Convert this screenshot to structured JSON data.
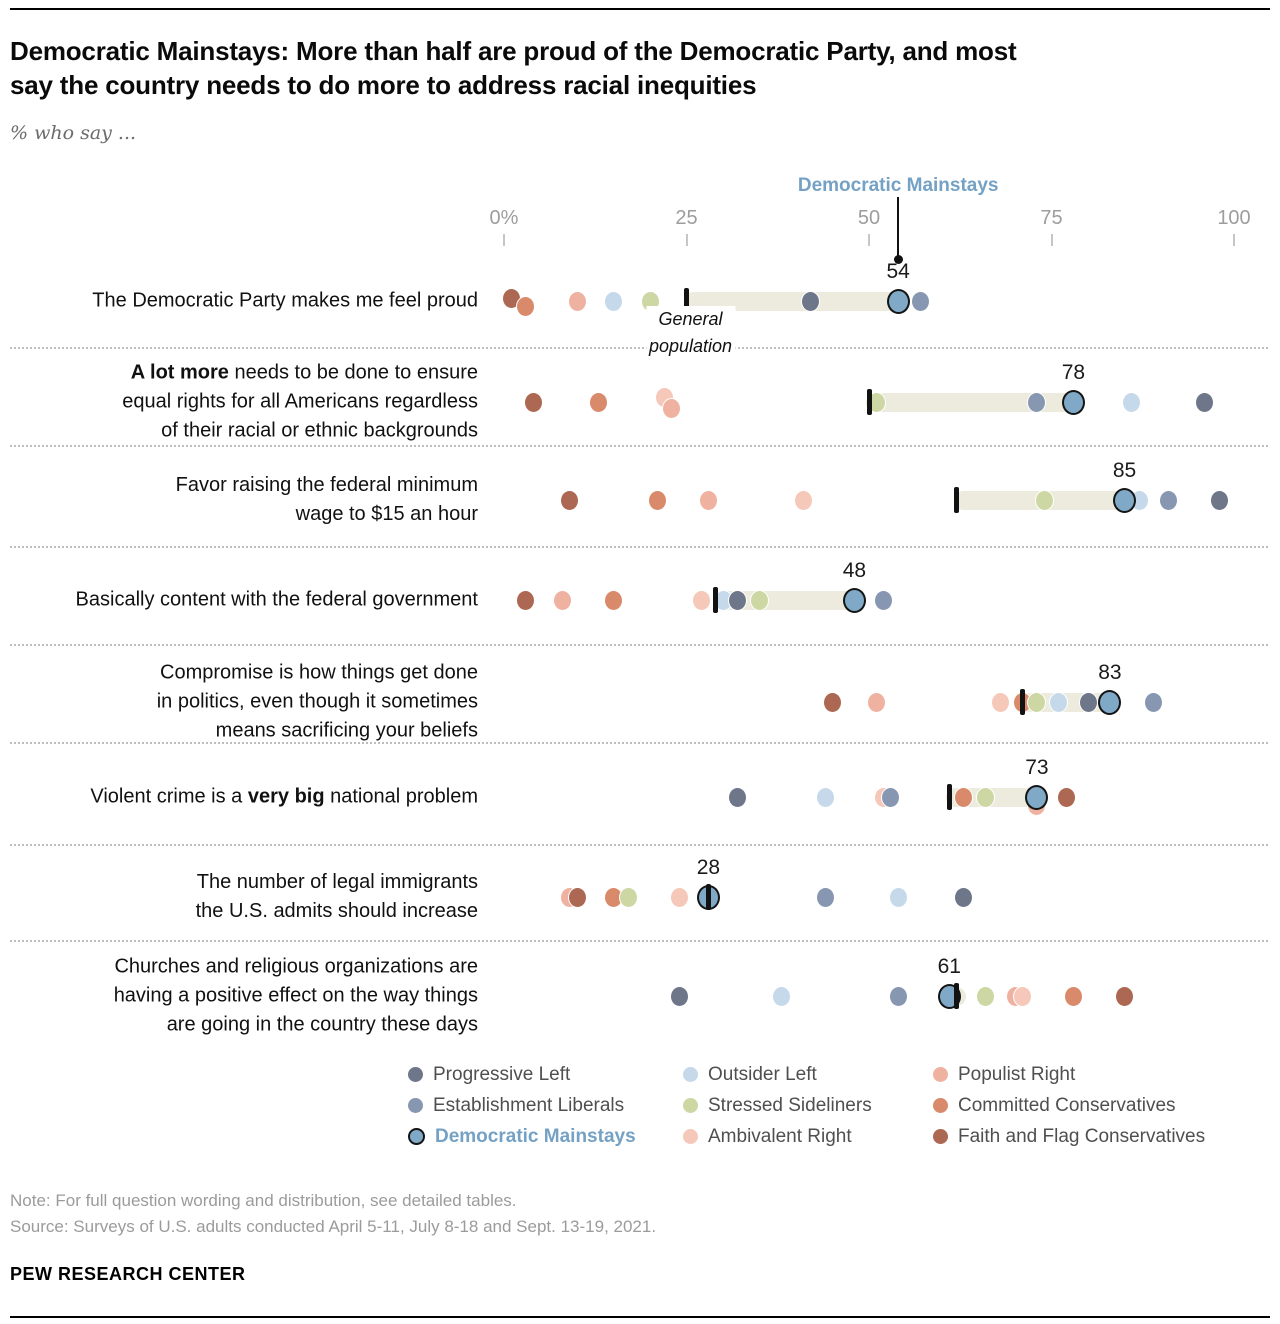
{
  "header": {
    "title_line1": "Democratic Mainstays: More than half are proud of the Democratic Party, and most",
    "title_line2": "say the country needs to do more to address racial inequities",
    "subtitle": "% who say ..."
  },
  "pointer": {
    "label": "Democratic Mainstays",
    "value": 54,
    "color": "#74a1c4"
  },
  "general_population_annotation": {
    "line1": "General",
    "line2": "population",
    "anchor_value": 25
  },
  "groups": [
    {
      "id": "progressive_left",
      "label": "Progressive Left",
      "color": "#6e7689"
    },
    {
      "id": "establishment_liberals",
      "label": "Establishment Liberals",
      "color": "#8897b1"
    },
    {
      "id": "democratic_mainstays",
      "label": "Democratic Mainstays",
      "color": "#7fa9c7",
      "ring": true,
      "label_color": "#74a1c4"
    },
    {
      "id": "outsider_left",
      "label": "Outsider Left",
      "color": "#c6d9eb"
    },
    {
      "id": "stressed_sideliners",
      "label": "Stressed Sideliners",
      "color": "#cdd7a3"
    },
    {
      "id": "ambivalent_right",
      "label": "Ambivalent Right",
      "color": "#f6c8ba"
    },
    {
      "id": "populist_right",
      "label": "Populist Right",
      "color": "#efb2a1"
    },
    {
      "id": "committed_conservatives",
      "label": "Committed Conservatives",
      "color": "#d98a6b"
    },
    {
      "id": "faith_flag",
      "label": "Faith and Flag Conservatives",
      "color": "#ac6852"
    }
  ],
  "legend_columns": [
    [
      "progressive_left",
      "establishment_liberals",
      "democratic_mainstays"
    ],
    [
      "outsider_left",
      "stressed_sideliners",
      "ambivalent_right"
    ],
    [
      "populist_right",
      "committed_conservatives",
      "faith_flag"
    ]
  ],
  "chart_data": {
    "type": "scatter",
    "title": "Democratic Mainstays: More than half are proud of the Democratic Party, and most say the country needs to do more to address racial inequities",
    "xlabel": "% who say",
    "xlim": [
      0,
      100
    ],
    "grid": false,
    "axis_ticks": [
      {
        "value": 0,
        "label": "0%"
      },
      {
        "value": 25,
        "label": "25"
      },
      {
        "value": 50,
        "label": "50"
      },
      {
        "value": 75,
        "label": "75"
      },
      {
        "value": 100,
        "label": "100"
      }
    ],
    "bar_color": "#ecebdd",
    "rows": [
      {
        "label": [
          [
            {
              "t": "The Democratic Party makes me feel proud",
              "b": false
            }
          ]
        ],
        "general_population": 25,
        "dm_value": 54,
        "dm_label": "54",
        "dots": [
          {
            "g": "faith_flag",
            "v": 1,
            "dy": -3
          },
          {
            "g": "committed_conservatives",
            "v": 3,
            "dy": 5
          },
          {
            "g": "populist_right",
            "v": 10,
            "dy": 0
          },
          {
            "g": "outsider_left",
            "v": 15,
            "dy": 0
          },
          {
            "g": "stressed_sideliners",
            "v": 20,
            "dy": 0
          },
          {
            "g": "progressive_left",
            "v": 42,
            "dy": 0
          },
          {
            "g": "establishment_liberals",
            "v": 57,
            "dy": 0
          },
          {
            "g": "democratic_mainstays",
            "v": 54,
            "dy": 0
          }
        ]
      },
      {
        "label": [
          [
            {
              "t": "A lot more",
              "b": true
            },
            {
              "t": " needs to be done to ensure",
              "b": false
            }
          ],
          [
            {
              "t": "equal rights for all Americans regardless",
              "b": false
            }
          ],
          [
            {
              "t": "of their racial or ethnic backgrounds",
              "b": false
            }
          ]
        ],
        "general_population": 50,
        "dm_value": 78,
        "dm_label": "78",
        "dots": [
          {
            "g": "faith_flag",
            "v": 4,
            "dy": 0
          },
          {
            "g": "committed_conservatives",
            "v": 13,
            "dy": 0
          },
          {
            "g": "ambivalent_right",
            "v": 22,
            "dy": -5
          },
          {
            "g": "populist_right",
            "v": 23,
            "dy": 6
          },
          {
            "g": "stressed_sideliners",
            "v": 51,
            "dy": 0
          },
          {
            "g": "establishment_liberals",
            "v": 73,
            "dy": 0
          },
          {
            "g": "outsider_left",
            "v": 86,
            "dy": 0
          },
          {
            "g": "progressive_left",
            "v": 96,
            "dy": 0
          },
          {
            "g": "democratic_mainstays",
            "v": 78,
            "dy": 0
          }
        ]
      },
      {
        "label": [
          [
            {
              "t": "Favor raising the federal minimum",
              "b": false
            }
          ],
          [
            {
              "t": "wage to $15 an hour",
              "b": false
            }
          ]
        ],
        "general_population": 62,
        "dm_value": 85,
        "dm_label": "85",
        "dots": [
          {
            "g": "faith_flag",
            "v": 9,
            "dy": 0
          },
          {
            "g": "committed_conservatives",
            "v": 21,
            "dy": 0
          },
          {
            "g": "populist_right",
            "v": 28,
            "dy": 0
          },
          {
            "g": "ambivalent_right",
            "v": 41,
            "dy": 0
          },
          {
            "g": "stressed_sideliners",
            "v": 74,
            "dy": 0
          },
          {
            "g": "outsider_left",
            "v": 87,
            "dy": 0
          },
          {
            "g": "establishment_liberals",
            "v": 91,
            "dy": 0
          },
          {
            "g": "progressive_left",
            "v": 98,
            "dy": 0
          },
          {
            "g": "democratic_mainstays",
            "v": 85,
            "dy": 0
          }
        ]
      },
      {
        "label": [
          [
            {
              "t": "Basically content with the federal government",
              "b": false
            }
          ]
        ],
        "general_population": 29,
        "dm_value": 48,
        "dm_label": "48",
        "dots": [
          {
            "g": "faith_flag",
            "v": 3,
            "dy": 0
          },
          {
            "g": "populist_right",
            "v": 8,
            "dy": 0
          },
          {
            "g": "committed_conservatives",
            "v": 15,
            "dy": 0
          },
          {
            "g": "ambivalent_right",
            "v": 27,
            "dy": 0
          },
          {
            "g": "outsider_left",
            "v": 30,
            "dy": 0
          },
          {
            "g": "progressive_left",
            "v": 32,
            "dy": 0
          },
          {
            "g": "stressed_sideliners",
            "v": 35,
            "dy": 0
          },
          {
            "g": "establishment_liberals",
            "v": 52,
            "dy": 0
          },
          {
            "g": "democratic_mainstays",
            "v": 48,
            "dy": 0
          }
        ]
      },
      {
        "label": [
          [
            {
              "t": "Compromise is how things get done",
              "b": false
            }
          ],
          [
            {
              "t": "in politics, even though it sometimes",
              "b": false
            }
          ],
          [
            {
              "t": "means sacrificing your beliefs",
              "b": false
            }
          ]
        ],
        "general_population": 71,
        "dm_value": 83,
        "dm_label": "83",
        "dots": [
          {
            "g": "faith_flag",
            "v": 45,
            "dy": 0
          },
          {
            "g": "populist_right",
            "v": 51,
            "dy": 0
          },
          {
            "g": "ambivalent_right",
            "v": 68,
            "dy": 0
          },
          {
            "g": "committed_conservatives",
            "v": 71,
            "dy": 0
          },
          {
            "g": "stressed_sideliners",
            "v": 73,
            "dy": 0
          },
          {
            "g": "outsider_left",
            "v": 76,
            "dy": 0
          },
          {
            "g": "progressive_left",
            "v": 80,
            "dy": 0
          },
          {
            "g": "establishment_liberals",
            "v": 89,
            "dy": 0
          },
          {
            "g": "democratic_mainstays",
            "v": 83,
            "dy": 0
          }
        ]
      },
      {
        "label": [
          [
            {
              "t": "Violent crime is a ",
              "b": false
            },
            {
              "t": "very big",
              "b": true
            },
            {
              "t": " national problem",
              "b": false
            }
          ]
        ],
        "general_population": 61,
        "dm_value": 73,
        "dm_label": "73",
        "dots": [
          {
            "g": "progressive_left",
            "v": 32,
            "dy": 0
          },
          {
            "g": "outsider_left",
            "v": 44,
            "dy": 0
          },
          {
            "g": "ambivalent_right",
            "v": 52,
            "dy": 0
          },
          {
            "g": "establishment_liberals",
            "v": 53,
            "dy": 0
          },
          {
            "g": "committed_conservatives",
            "v": 63,
            "dy": 0
          },
          {
            "g": "stressed_sideliners",
            "v": 66,
            "dy": 0
          },
          {
            "g": "populist_right",
            "v": 73,
            "dy": 8
          },
          {
            "g": "faith_flag",
            "v": 77,
            "dy": 0
          },
          {
            "g": "democratic_mainstays",
            "v": 73,
            "dy": 0
          }
        ]
      },
      {
        "label": [
          [
            {
              "t": "The number of legal immigrants",
              "b": false
            }
          ],
          [
            {
              "t": "the U.S. admits should increase",
              "b": false
            }
          ]
        ],
        "general_population": 28,
        "dm_value": 28,
        "dm_label": "28",
        "dots": [
          {
            "g": "populist_right",
            "v": 9,
            "dy": 0
          },
          {
            "g": "faith_flag",
            "v": 10,
            "dy": 0
          },
          {
            "g": "committed_conservatives",
            "v": 15,
            "dy": 0
          },
          {
            "g": "stressed_sideliners",
            "v": 17,
            "dy": 0
          },
          {
            "g": "ambivalent_right",
            "v": 24,
            "dy": 0
          },
          {
            "g": "establishment_liberals",
            "v": 44,
            "dy": 0
          },
          {
            "g": "outsider_left",
            "v": 54,
            "dy": 0
          },
          {
            "g": "progressive_left",
            "v": 63,
            "dy": 0
          },
          {
            "g": "democratic_mainstays",
            "v": 28,
            "dy": 0
          }
        ]
      },
      {
        "label": [
          [
            {
              "t": "Churches and religious organizations are",
              "b": false
            }
          ],
          [
            {
              "t": "having a positive effect on the way things",
              "b": false
            }
          ],
          [
            {
              "t": "are going in the country these days",
              "b": false
            }
          ]
        ],
        "general_population": 62,
        "dm_value": 61,
        "dm_label": "61",
        "dots": [
          {
            "g": "progressive_left",
            "v": 24,
            "dy": 0
          },
          {
            "g": "outsider_left",
            "v": 38,
            "dy": 0
          },
          {
            "g": "establishment_liberals",
            "v": 54,
            "dy": 0
          },
          {
            "g": "stressed_sideliners",
            "v": 66,
            "dy": 0
          },
          {
            "g": "populist_right",
            "v": 70,
            "dy": 0
          },
          {
            "g": "ambivalent_right",
            "v": 71,
            "dy": 0
          },
          {
            "g": "committed_conservatives",
            "v": 78,
            "dy": 0
          },
          {
            "g": "faith_flag",
            "v": 85,
            "dy": 0
          },
          {
            "g": "democratic_mainstays",
            "v": 61,
            "dy": 0
          }
        ]
      }
    ]
  },
  "footer": {
    "note": "Note: For full question wording and distribution, see detailed tables.",
    "source": "Source: Surveys of U.S. adults conducted April 5-11, July 8-18 and Sept. 13-19, 2021.",
    "brand": "PEW RESEARCH CENTER"
  }
}
